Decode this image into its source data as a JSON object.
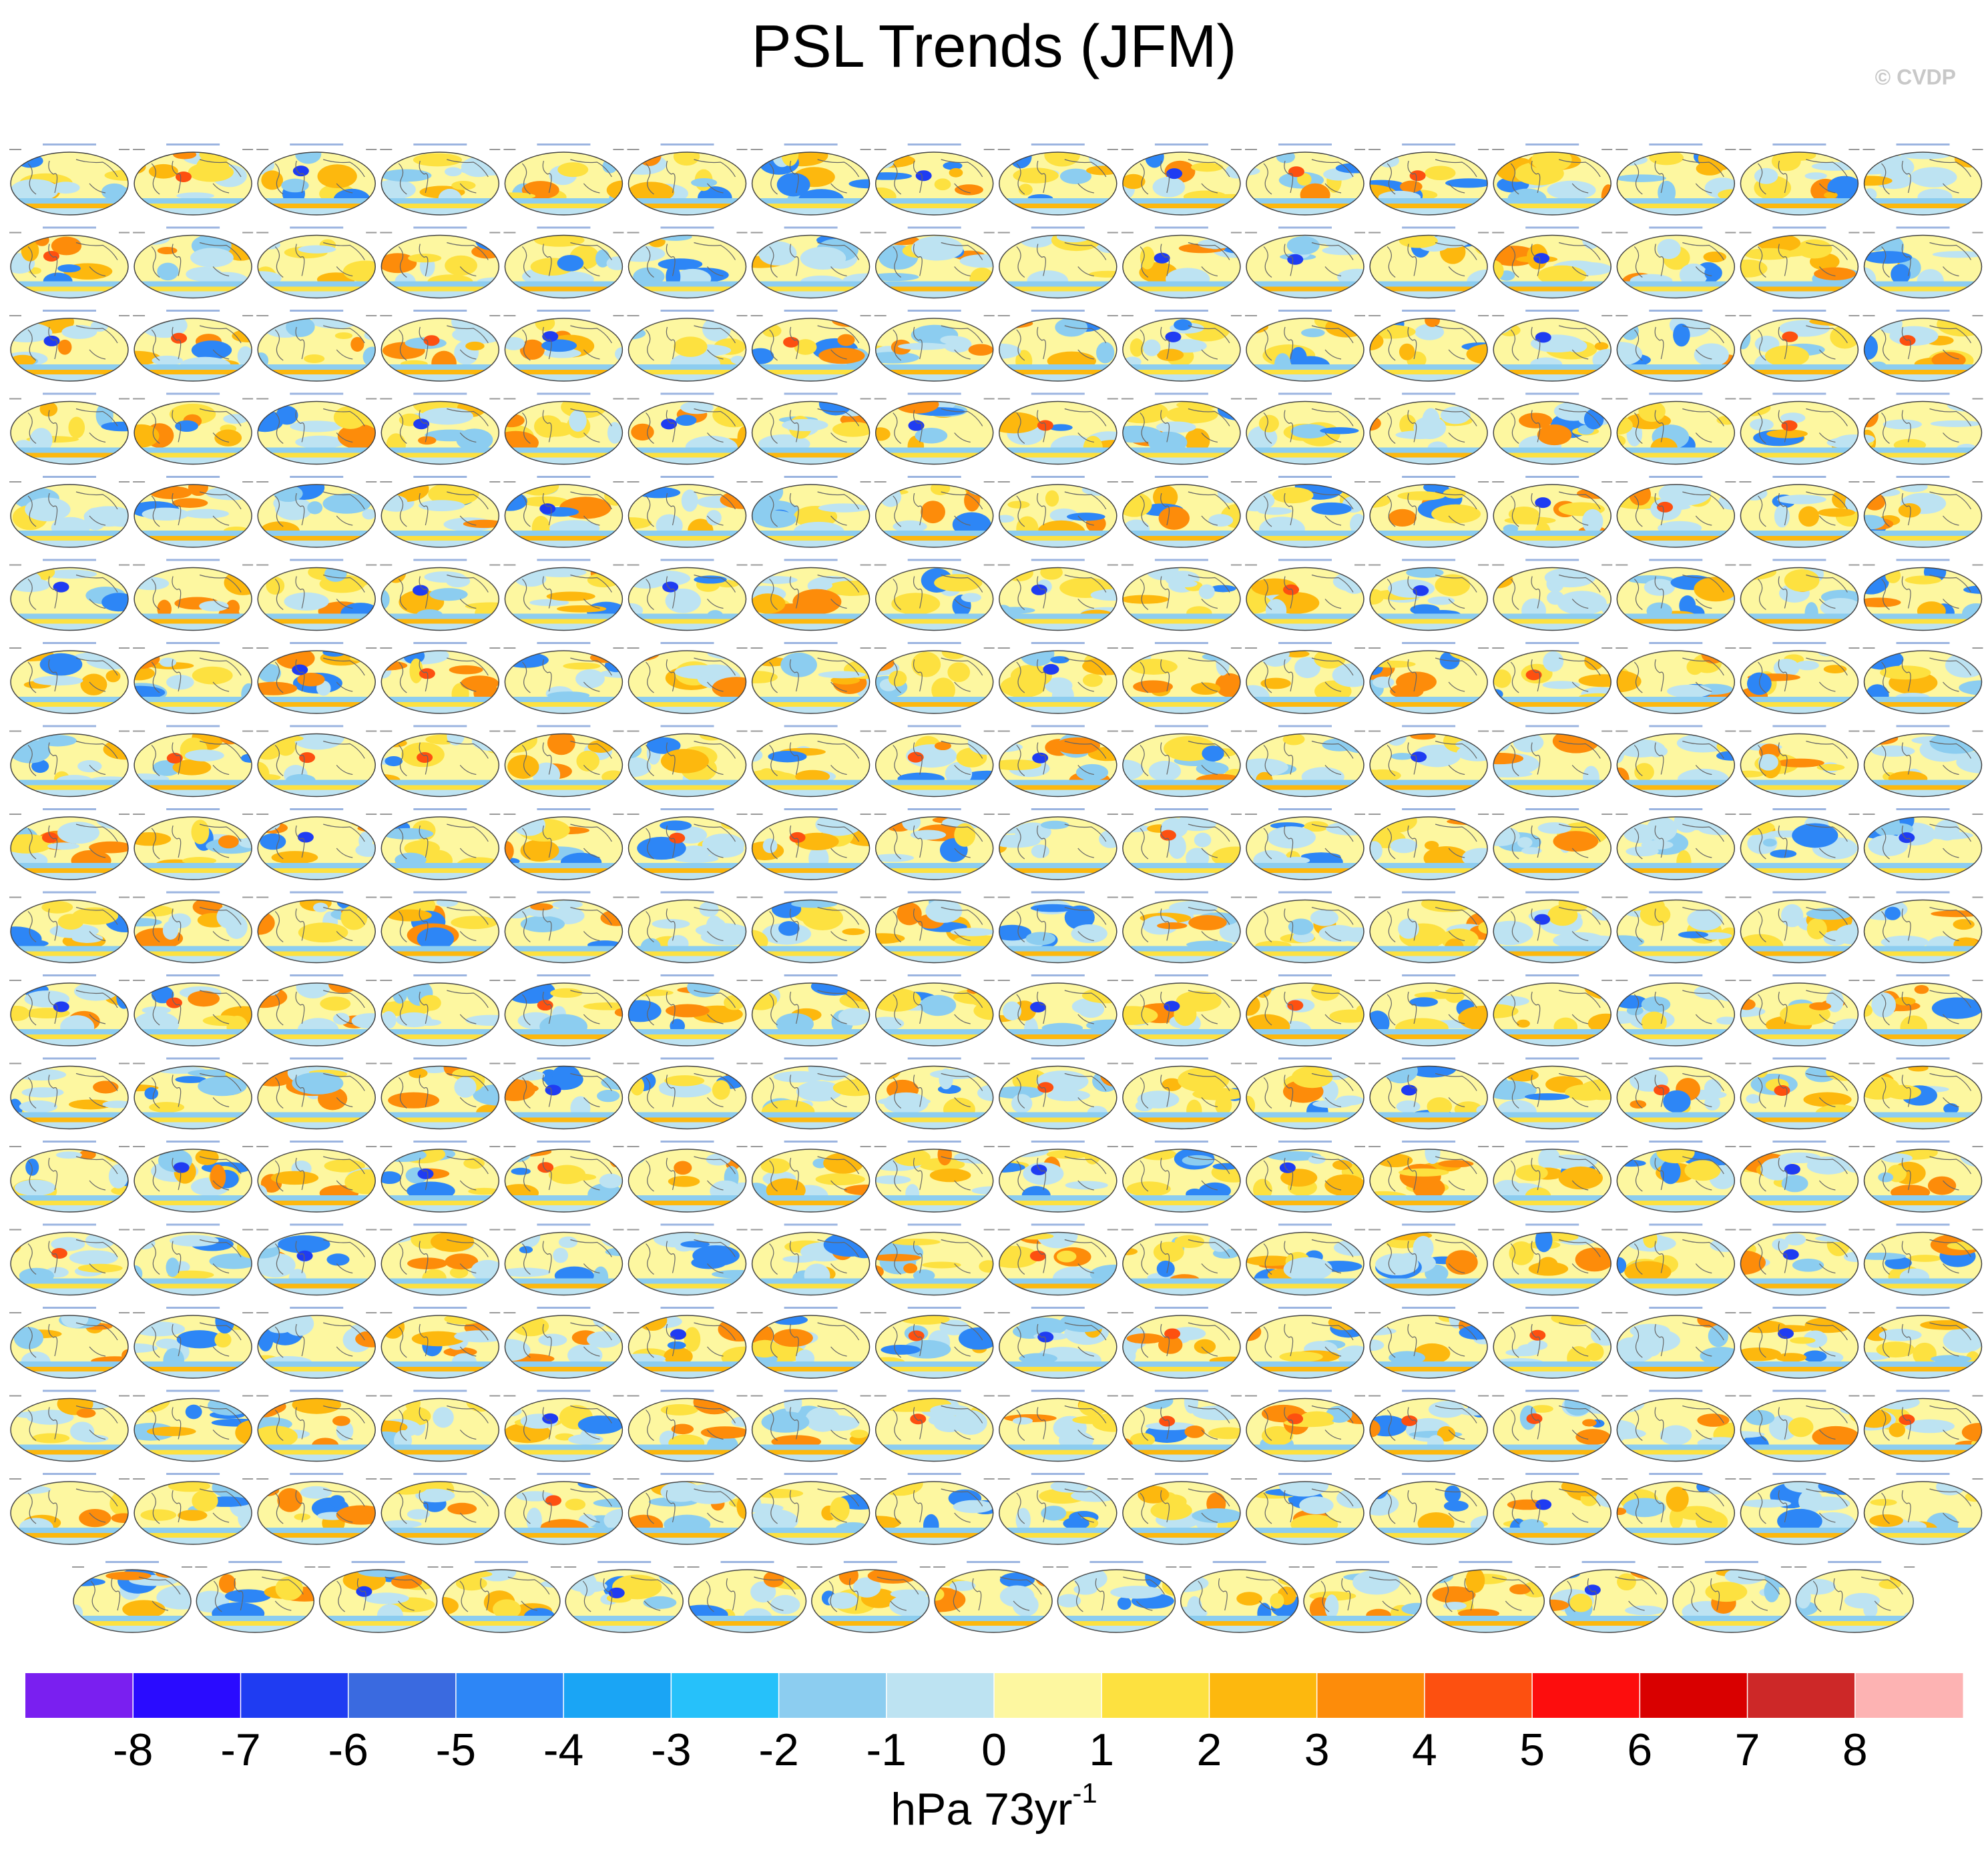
{
  "chart_data": {
    "type": "colorbar",
    "title": "PSL Trends (JFM)",
    "watermark": "© CVDP",
    "colors": [
      "#7a1ff0",
      "#2a0bff",
      "#1f3cf2",
      "#3a6ae0",
      "#2d86f6",
      "#1aa5f5",
      "#26c1fa",
      "#8ccdf0",
      "#bde3f2",
      "#fdf7a0",
      "#fde140",
      "#fdb80e",
      "#fd8c0a",
      "#fd5010",
      "#fd0d0d",
      "#d90000",
      "#cd2828",
      "#fdb3b3"
    ],
    "ticks": [
      -8,
      -7,
      -6,
      -5,
      -4,
      -3,
      -2,
      -1,
      0,
      1,
      2,
      3,
      4,
      5,
      6,
      7,
      8
    ],
    "units": "hPa 73yr",
    "units_superscript": "-1"
  }
}
